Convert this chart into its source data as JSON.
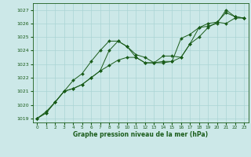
{
  "xlabel": "Graphe pression niveau de la mer (hPa)",
  "xlim": [
    -0.5,
    23.5
  ],
  "ylim": [
    1018.7,
    1027.5
  ],
  "yticks": [
    1019,
    1020,
    1021,
    1022,
    1023,
    1024,
    1025,
    1026,
    1027
  ],
  "xticks": [
    0,
    1,
    2,
    3,
    4,
    5,
    6,
    7,
    8,
    9,
    10,
    11,
    12,
    13,
    14,
    15,
    16,
    17,
    18,
    19,
    20,
    21,
    22,
    23
  ],
  "bg_color": "#cce8e8",
  "line_color": "#1a5c1a",
  "grid_color": "#aad4d4",
  "lines": [
    {
      "x": [
        0,
        1,
        2,
        3,
        4,
        5,
        6,
        7,
        8,
        9,
        10,
        11,
        12,
        13,
        14,
        15,
        16,
        17,
        18,
        19,
        20,
        21,
        22,
        23
      ],
      "y": [
        1019.0,
        1019.5,
        1020.2,
        1021.0,
        1021.8,
        1022.3,
        1023.2,
        1024.0,
        1024.7,
        1024.7,
        1024.3,
        1023.5,
        1023.1,
        1023.1,
        1023.1,
        1023.2,
        1024.9,
        1025.2,
        1025.7,
        1026.0,
        1026.1,
        1026.0,
        1026.4,
        1026.4
      ]
    },
    {
      "x": [
        0,
        1,
        2,
        3,
        4,
        5,
        6,
        7,
        8,
        9,
        10,
        11,
        12,
        13,
        14,
        15,
        16,
        17,
        18,
        19,
        20,
        21,
        22,
        23
      ],
      "y": [
        1019.0,
        1019.4,
        1020.2,
        1021.0,
        1021.2,
        1021.5,
        1022.0,
        1022.5,
        1024.0,
        1024.7,
        1024.3,
        1023.7,
        1023.5,
        1023.1,
        1023.6,
        1023.6,
        1023.5,
        1024.5,
        1025.7,
        1025.8,
        1026.0,
        1027.0,
        1026.5,
        1026.4
      ]
    },
    {
      "x": [
        0,
        1,
        2,
        3,
        4,
        5,
        6,
        7,
        8,
        9,
        10,
        11,
        12,
        13,
        14,
        15,
        16,
        17,
        18,
        19,
        20,
        21,
        22,
        23
      ],
      "y": [
        1019.0,
        1019.4,
        1020.2,
        1021.0,
        1021.2,
        1021.5,
        1022.0,
        1022.5,
        1022.9,
        1023.3,
        1023.5,
        1023.5,
        1023.1,
        1023.1,
        1023.2,
        1023.2,
        1023.5,
        1024.5,
        1025.0,
        1025.7,
        1026.1,
        1026.8,
        1026.5,
        1026.4
      ]
    }
  ]
}
